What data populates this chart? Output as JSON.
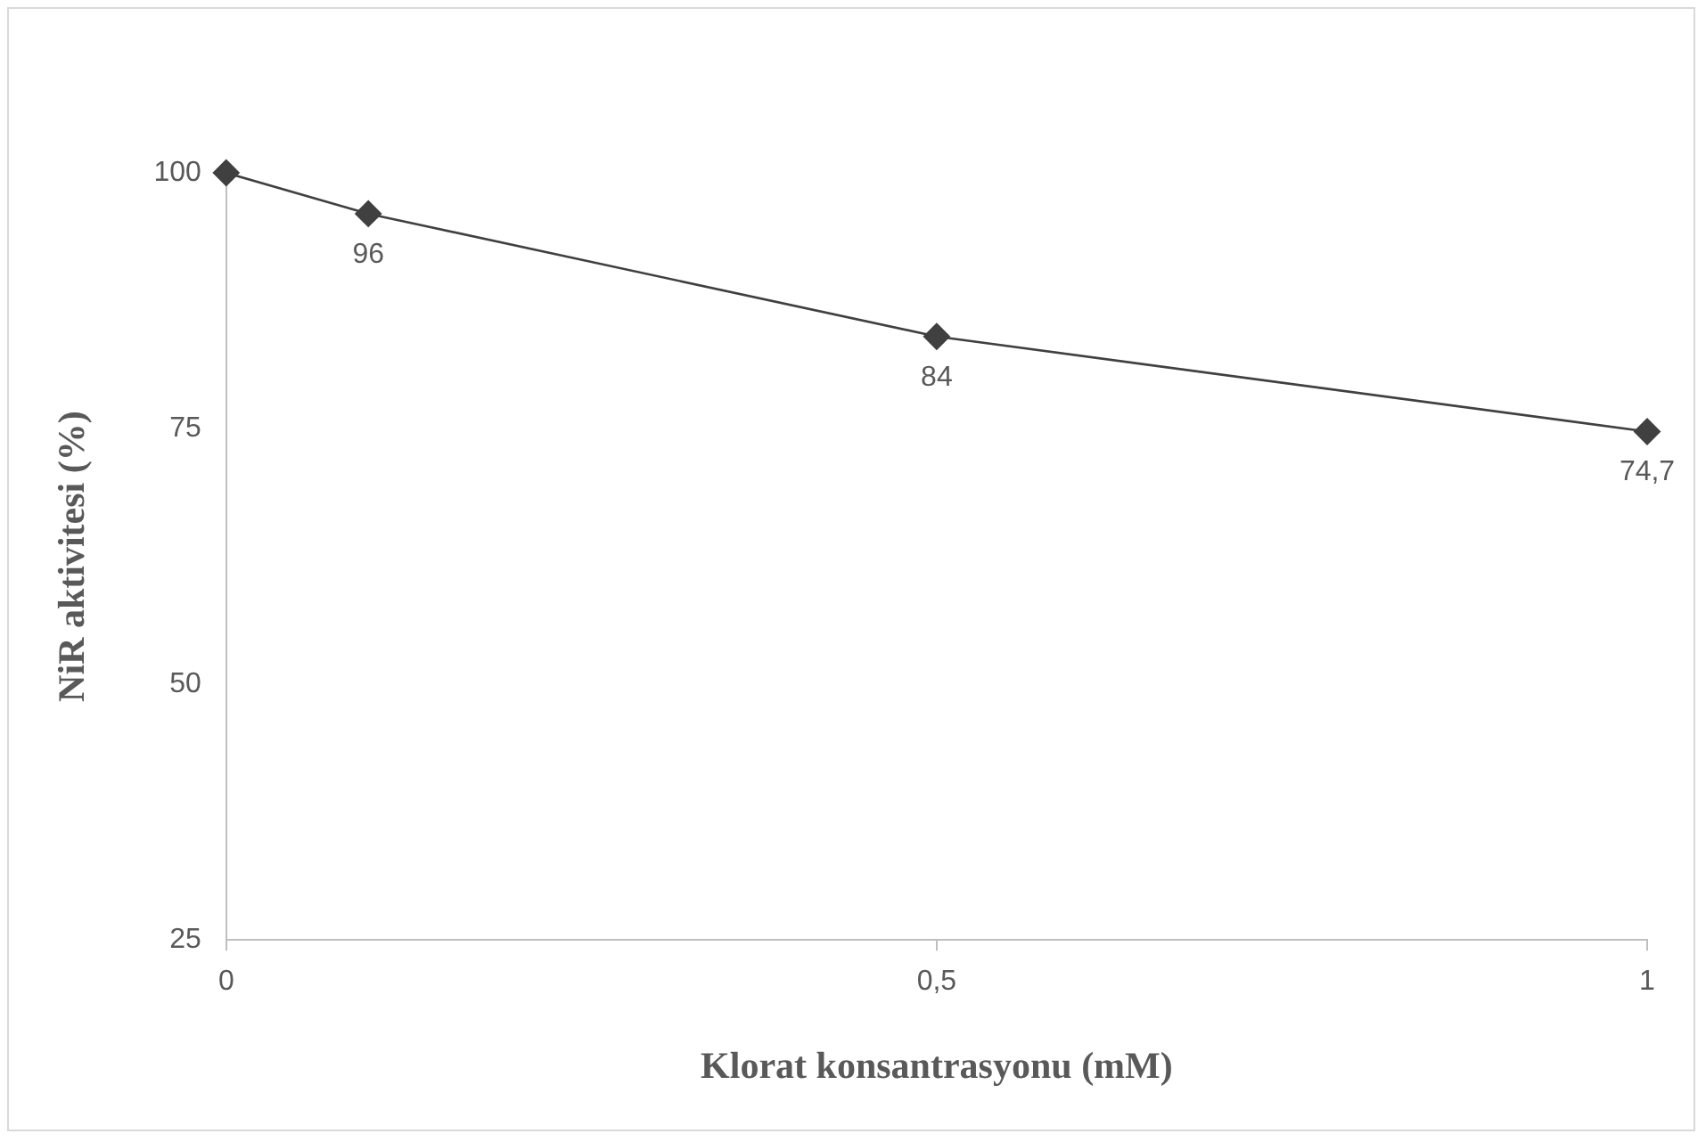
{
  "chart_data": {
    "type": "line",
    "xlabel": "Klorat konsantrasyonu (mM)",
    "ylabel": "NiR aktivitesi (%)",
    "x": [
      0,
      0.1,
      0.5,
      1
    ],
    "series": [
      {
        "color": "#404040",
        "values": [
          100,
          96,
          84,
          74.7
        ],
        "value_labels": [
          null,
          "96",
          "84",
          "74,7"
        ]
      }
    ],
    "xlim": [
      0,
      1
    ],
    "xticks": [
      0,
      {
        "value": 0.5,
        "label": "0,5"
      },
      1
    ],
    "ylim": [
      25,
      100
    ],
    "yticks": [
      25,
      50,
      75,
      100
    ],
    "grid": false,
    "legend": false,
    "marker": "diamond",
    "line_style": "solid"
  }
}
